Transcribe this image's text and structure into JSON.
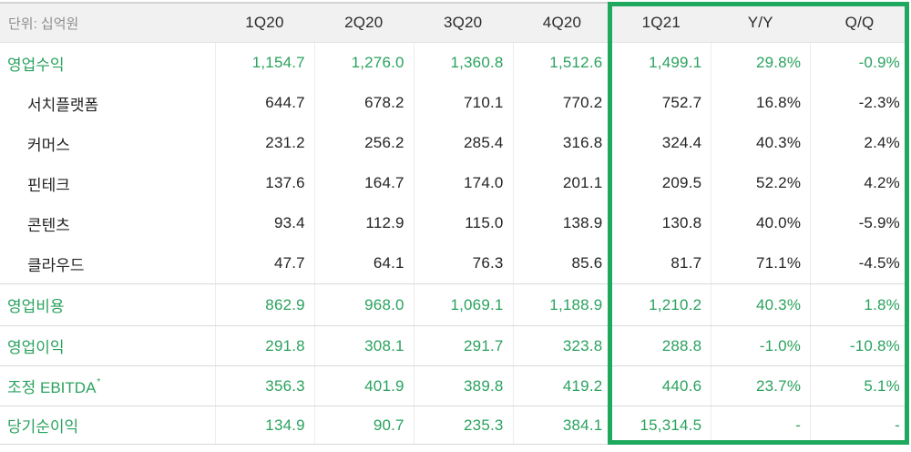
{
  "unit_label": "단위: 십억원",
  "columns": [
    "1Q20",
    "2Q20",
    "3Q20",
    "4Q20",
    "1Q21",
    "Y/Y",
    "Q/Q"
  ],
  "colors": {
    "accent_green_text": "#2aa25f",
    "highlight_border_green": "#1fa95e",
    "header_background": "#f1f1f2"
  },
  "highlight": {
    "covered_columns": [
      "1Q21",
      "Y/Y",
      "Q/Q"
    ]
  },
  "rows": [
    {
      "label": "영업수익",
      "indent": false,
      "green": true,
      "separator": false,
      "values": [
        "1,154.7",
        "1,276.0",
        "1,360.8",
        "1,512.6",
        "1,499.1",
        "29.8%",
        "-0.9%"
      ]
    },
    {
      "label": "서치플랫폼",
      "indent": true,
      "green": false,
      "separator": false,
      "values": [
        "644.7",
        "678.2",
        "710.1",
        "770.2",
        "752.7",
        "16.8%",
        "-2.3%"
      ]
    },
    {
      "label": "커머스",
      "indent": true,
      "green": false,
      "separator": false,
      "values": [
        "231.2",
        "256.2",
        "285.4",
        "316.8",
        "324.4",
        "40.3%",
        "2.4%"
      ]
    },
    {
      "label": "핀테크",
      "indent": true,
      "green": false,
      "separator": false,
      "values": [
        "137.6",
        "164.7",
        "174.0",
        "201.1",
        "209.5",
        "52.2%",
        "4.2%"
      ]
    },
    {
      "label": "콘텐츠",
      "indent": true,
      "green": false,
      "separator": false,
      "values": [
        "93.4",
        "112.9",
        "115.0",
        "138.9",
        "130.8",
        "40.0%",
        "-5.9%"
      ]
    },
    {
      "label": "클라우드",
      "indent": true,
      "green": false,
      "separator": false,
      "values": [
        "47.7",
        "64.1",
        "76.3",
        "85.6",
        "81.7",
        "71.1%",
        "-4.5%"
      ]
    },
    {
      "label": "영업비용",
      "indent": false,
      "green": true,
      "separator": true,
      "size": "tall",
      "values": [
        "862.9",
        "968.0",
        "1,069.1",
        "1,188.9",
        "1,210.2",
        "40.3%",
        "1.8%"
      ]
    },
    {
      "label": "영업이익",
      "indent": false,
      "green": true,
      "separator": true,
      "values": [
        "291.8",
        "308.1",
        "291.7",
        "323.8",
        "288.8",
        "-1.0%",
        "-10.8%"
      ]
    },
    {
      "label": "조정 EBITDA",
      "label_suffix": "*",
      "indent": false,
      "green": true,
      "separator": true,
      "values": [
        "356.3",
        "401.9",
        "389.8",
        "419.2",
        "440.6",
        "23.7%",
        "5.1%"
      ]
    },
    {
      "label": "당기순이익",
      "indent": false,
      "green": true,
      "separator": true,
      "size": "short",
      "values": [
        "134.9",
        "90.7",
        "235.3",
        "384.1",
        "15,314.5",
        "-",
        "-"
      ]
    }
  ]
}
